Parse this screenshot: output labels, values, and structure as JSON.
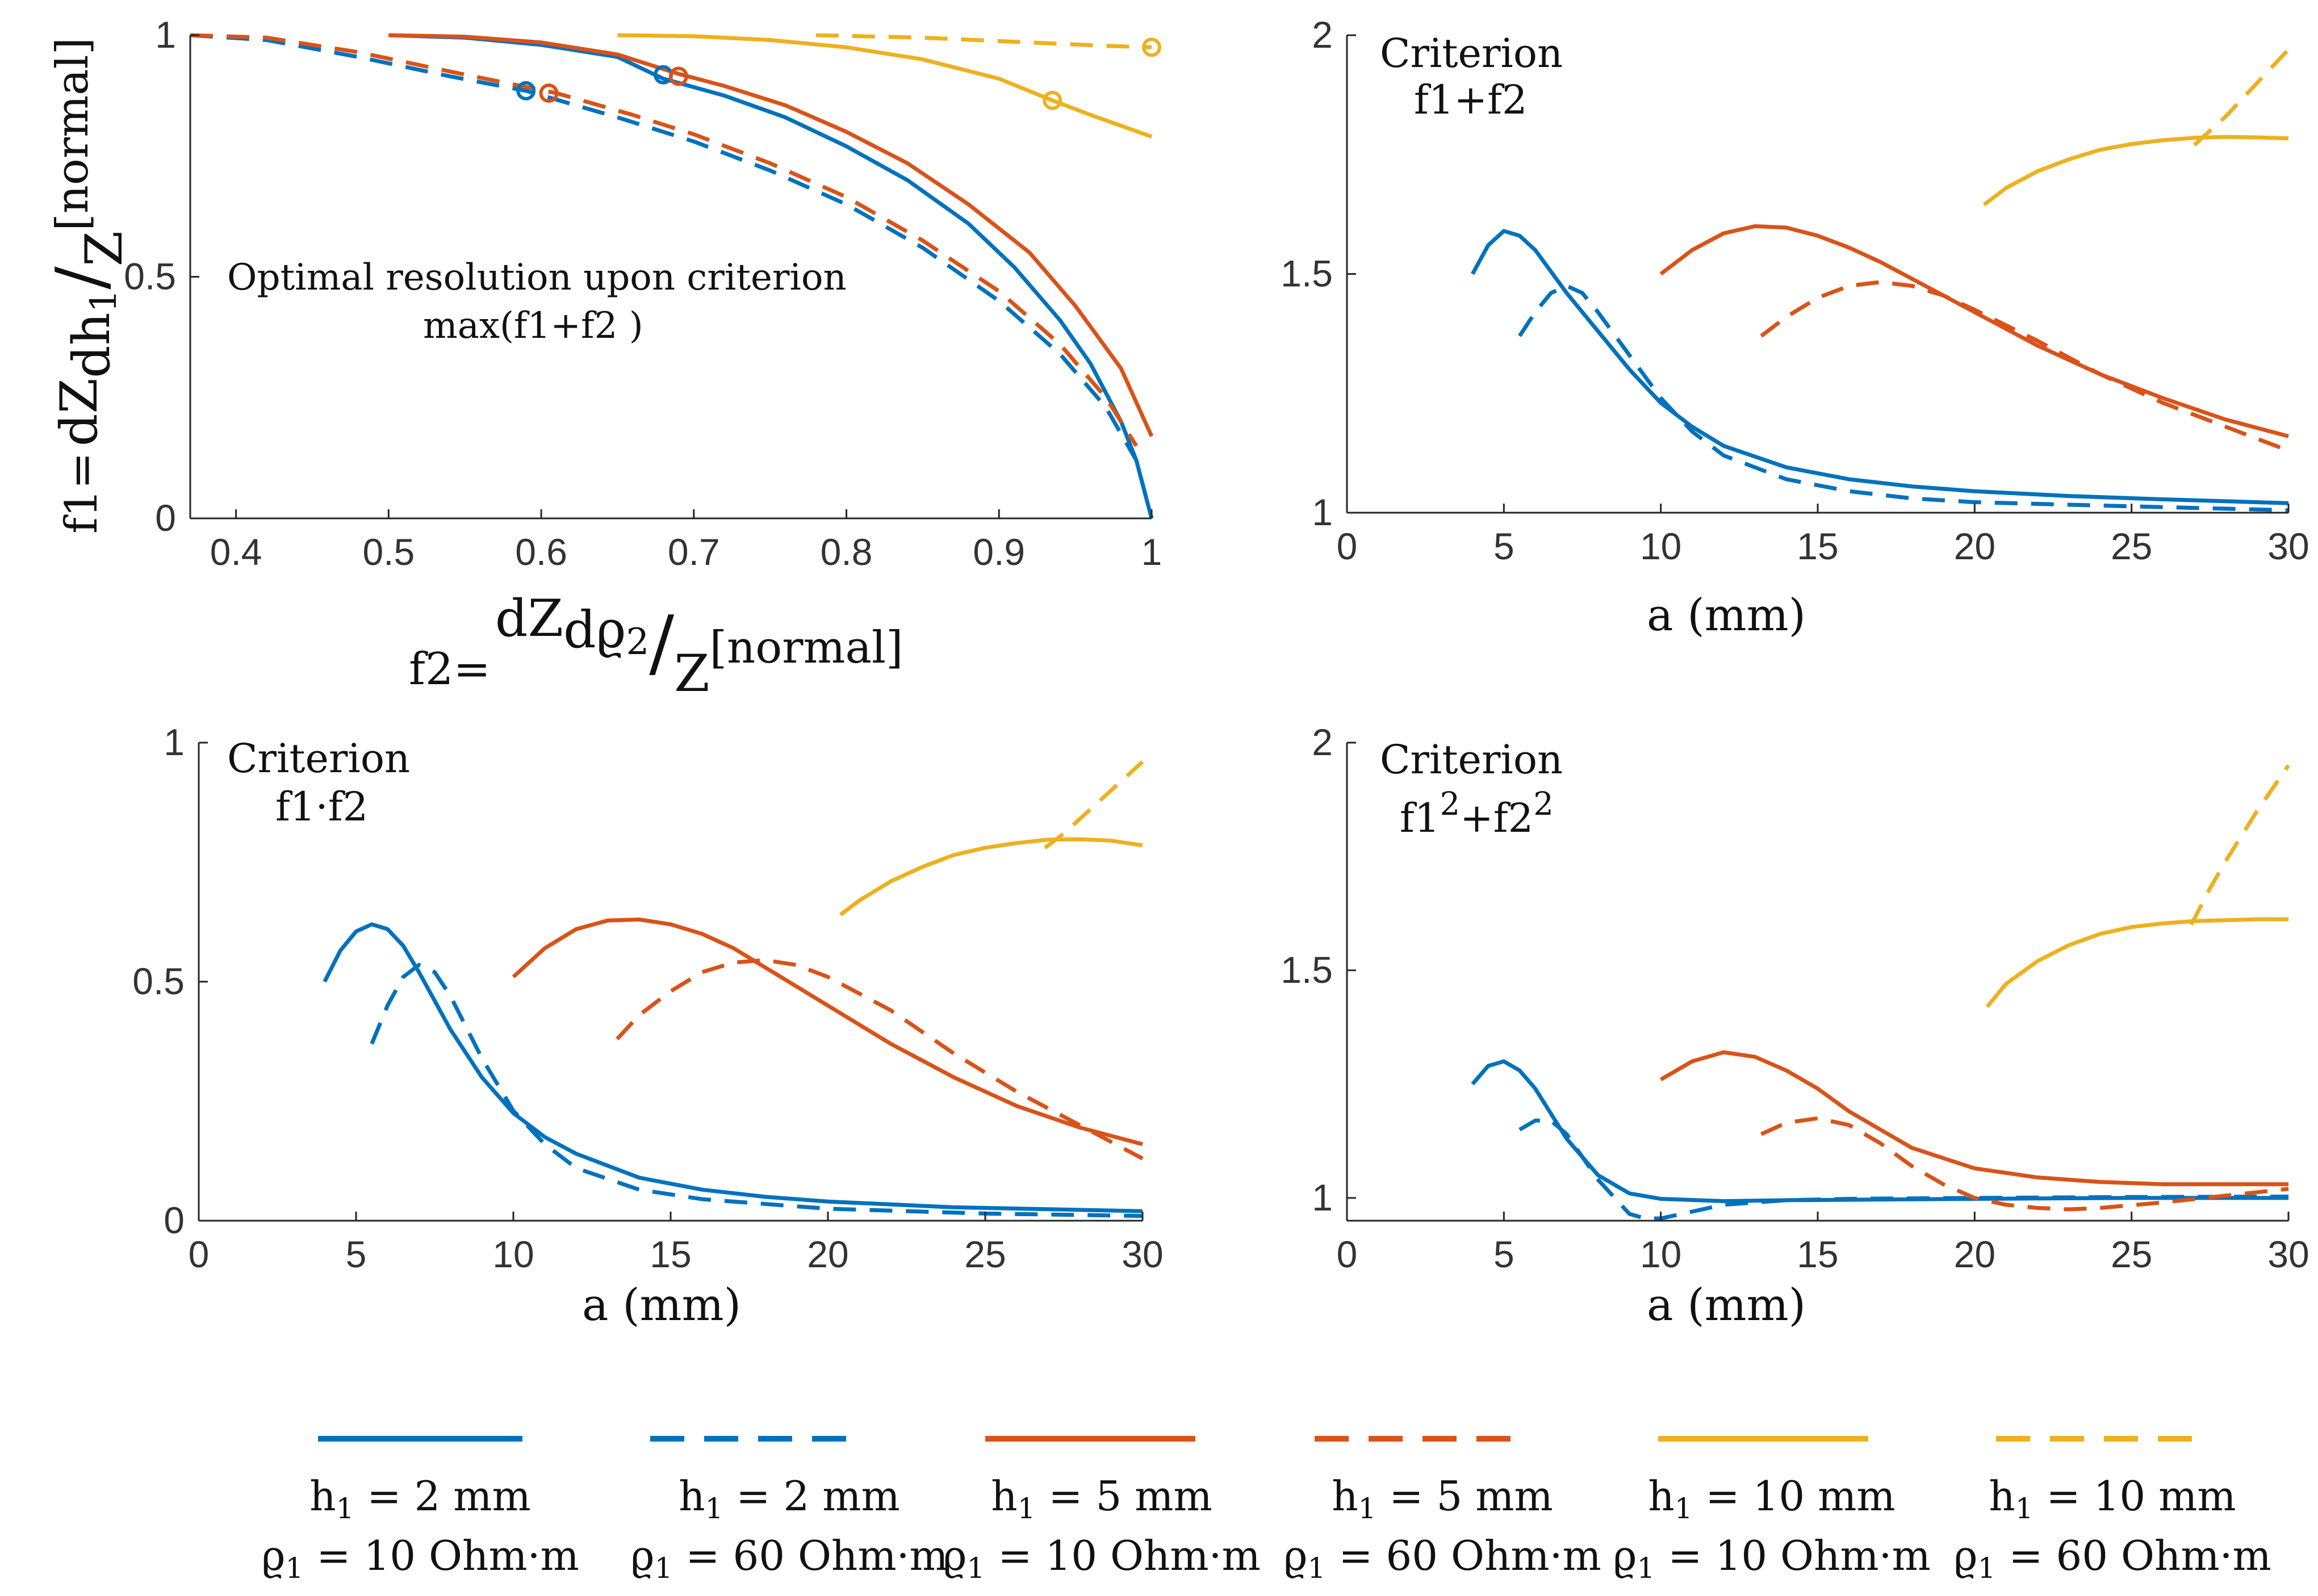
{
  "figure": "Four-panel plot comparing sensitivity trade-offs of a two-layer model",
  "series_colors": [
    "#0072BD",
    "#D95319",
    "#EDB120"
  ],
  "legend": [
    {
      "line1": "h",
      "line1_sub": "1",
      "line1_rest": " = 2 mm",
      "line2": "ϱ",
      "line2_sub": "1",
      "line2_rest": " = 10 Ohm·m",
      "color": "#0072BD",
      "dashed": false
    },
    {
      "line1": "h",
      "line1_sub": "1",
      "line1_rest": " = 2 mm",
      "line2": "ϱ",
      "line2_sub": "1",
      "line2_rest": " = 60 Ohm·m",
      "color": "#0072BD",
      "dashed": true
    },
    {
      "line1": "h",
      "line1_sub": "1",
      "line1_rest": " = 5 mm",
      "line2": "ϱ",
      "line2_sub": "1",
      "line2_rest": " = 10 Ohm·m",
      "color": "#D95319",
      "dashed": false
    },
    {
      "line1": "h",
      "line1_sub": "1",
      "line1_rest": " = 5 mm",
      "line2": "ϱ",
      "line2_sub": "1",
      "line2_rest": " = 60 Ohm·m",
      "color": "#D95319",
      "dashed": true
    },
    {
      "line1": "h",
      "line1_sub": "1",
      "line1_rest": " = 10 mm",
      "line2": "ϱ",
      "line2_sub": "1",
      "line2_rest": " = 10 Ohm·m",
      "color": "#EDB120",
      "dashed": false
    },
    {
      "line1": "h",
      "line1_sub": "1",
      "line1_rest": " = 10 mm",
      "line2": "ϱ",
      "line2_sub": "1",
      "line2_rest": " = 60 Ohm·m",
      "color": "#EDB120",
      "dashed": true
    }
  ],
  "chart_data": [
    {
      "id": "tradeoff",
      "type": "line",
      "ylabel_parts": [
        "f1=",
        "dZ",
        "dh",
        "1",
        "/",
        "Z",
        "[normal]"
      ],
      "xlabel_parts": [
        "f2=",
        "dZ",
        "dϱ",
        "2",
        "/",
        "Z",
        "[normal]"
      ],
      "annotation": [
        "Optimal resolution upon criterion",
        "max(f1+f2 )"
      ],
      "xlim": [
        0.37,
        1.0
      ],
      "ylim": [
        0,
        1
      ],
      "xticks": [
        0.4,
        0.5,
        0.6,
        0.7,
        0.8,
        0.9,
        1.0
      ],
      "xticklabels": [
        "0.4",
        "0.5",
        "0.6",
        "0.7",
        "0.8",
        "0.9",
        "1"
      ],
      "yticks": [
        0,
        0.5,
        1
      ],
      "yticklabels": [
        "0",
        "0.5",
        "1"
      ],
      "series": [
        {
          "name": "h1 = 2 mm, ϱ1 = 10 Ohm·m",
          "color": "#0072BD",
          "dashed": false,
          "x": [
            0.5,
            0.55,
            0.6,
            0.65,
            0.68,
            0.72,
            0.76,
            0.8,
            0.84,
            0.88,
            0.91,
            0.94,
            0.96,
            0.98,
            0.99,
            1.0
          ],
          "y": [
            1.0,
            0.995,
            0.98,
            0.955,
            0.91,
            0.875,
            0.83,
            0.77,
            0.7,
            0.61,
            0.52,
            0.41,
            0.32,
            0.2,
            0.12,
            0.0
          ]
        },
        {
          "name": "h1 = 2 mm, ϱ1 = 60 Ohm·m",
          "color": "#0072BD",
          "dashed": true,
          "x": [
            0.37,
            0.42,
            0.48,
            0.54,
            0.59,
            0.65,
            0.7,
            0.75,
            0.8,
            0.85,
            0.9,
            0.94,
            0.97,
            0.99,
            1.0
          ],
          "y": [
            1.0,
            0.99,
            0.955,
            0.915,
            0.885,
            0.83,
            0.78,
            0.72,
            0.65,
            0.56,
            0.45,
            0.34,
            0.23,
            0.12,
            0.0
          ]
        },
        {
          "name": "h1 = 5 mm, ϱ1 = 10 Ohm·m",
          "color": "#D95319",
          "dashed": false,
          "x": [
            0.5,
            0.55,
            0.6,
            0.65,
            0.69,
            0.72,
            0.76,
            0.8,
            0.84,
            0.88,
            0.92,
            0.95,
            0.98,
            1.0
          ],
          "y": [
            1.0,
            0.997,
            0.985,
            0.96,
            0.92,
            0.895,
            0.855,
            0.8,
            0.735,
            0.65,
            0.55,
            0.44,
            0.31,
            0.17
          ]
        },
        {
          "name": "h1 = 5 mm, ϱ1 = 60 Ohm·m",
          "color": "#D95319",
          "dashed": true,
          "x": [
            0.37,
            0.42,
            0.48,
            0.54,
            0.61,
            0.66,
            0.7,
            0.75,
            0.8,
            0.85,
            0.9,
            0.94,
            0.97,
            0.99
          ],
          "y": [
            1.0,
            0.995,
            0.965,
            0.925,
            0.88,
            0.835,
            0.795,
            0.735,
            0.665,
            0.575,
            0.47,
            0.36,
            0.25,
            0.15
          ]
        },
        {
          "name": "h1 = 10 mm, ϱ1 = 10 Ohm·m",
          "color": "#EDB120",
          "dashed": false,
          "x": [
            0.65,
            0.7,
            0.75,
            0.8,
            0.85,
            0.9,
            0.935,
            0.96,
            1.0
          ],
          "y": [
            1.0,
            0.998,
            0.99,
            0.975,
            0.95,
            0.91,
            0.865,
            0.835,
            0.79
          ]
        },
        {
          "name": "h1 = 10 mm, ϱ1 = 60 Ohm·m",
          "color": "#EDB120",
          "dashed": true,
          "x": [
            0.78,
            0.85,
            0.92,
            0.97,
            1.0
          ],
          "y": [
            1.0,
            0.995,
            0.985,
            0.978,
            0.975
          ]
        }
      ],
      "optimal_markers": [
        {
          "x": 0.59,
          "y": 0.885,
          "color": "#0072BD"
        },
        {
          "x": 0.68,
          "y": 0.918,
          "color": "#0072BD"
        },
        {
          "x": 0.605,
          "y": 0.88,
          "color": "#D95319"
        },
        {
          "x": 0.69,
          "y": 0.915,
          "color": "#D95319"
        },
        {
          "x": 0.935,
          "y": 0.865,
          "color": "#EDB120"
        },
        {
          "x": 1.0,
          "y": 0.975,
          "color": "#EDB120"
        }
      ]
    },
    {
      "id": "sum",
      "type": "line",
      "criterion": [
        "Criterion",
        "f1+f2"
      ],
      "xlabel": "a (mm)",
      "xlim": [
        0,
        30
      ],
      "ylim": [
        1,
        2
      ],
      "xticks": [
        0,
        5,
        10,
        15,
        20,
        25,
        30
      ],
      "xticklabels": [
        "0",
        "5",
        "10",
        "15",
        "20",
        "25",
        "30"
      ],
      "yticks": [
        1,
        1.5,
        2
      ],
      "yticklabels": [
        "1",
        "1.5",
        "2"
      ],
      "series": [
        {
          "name": "h1 = 2 mm, ϱ1 = 10 Ohm·m",
          "color": "#0072BD",
          "dashed": false,
          "x": [
            4,
            4.5,
            5,
            5.5,
            6,
            7,
            8,
            9,
            10,
            11,
            12,
            14,
            16,
            18,
            20,
            23,
            26,
            30
          ],
          "y": [
            1.5,
            1.56,
            1.59,
            1.58,
            1.55,
            1.46,
            1.38,
            1.3,
            1.23,
            1.18,
            1.14,
            1.095,
            1.07,
            1.055,
            1.045,
            1.035,
            1.028,
            1.02
          ]
        },
        {
          "name": "h1 = 2 mm, ϱ1 = 60 Ohm·m",
          "color": "#0072BD",
          "dashed": true,
          "x": [
            5.5,
            6,
            6.5,
            7,
            7.5,
            8,
            9,
            10,
            11,
            12,
            14,
            16,
            18,
            20,
            24,
            30
          ],
          "y": [
            1.37,
            1.42,
            1.46,
            1.475,
            1.46,
            1.42,
            1.33,
            1.24,
            1.17,
            1.12,
            1.07,
            1.045,
            1.03,
            1.022,
            1.015,
            1.005
          ]
        },
        {
          "name": "h1 = 5 mm, ϱ1 = 10 Ohm·m",
          "color": "#D95319",
          "dashed": false,
          "x": [
            10,
            11,
            12,
            13,
            14,
            15,
            16,
            17,
            18,
            20,
            22,
            24,
            26,
            28,
            30
          ],
          "y": [
            1.5,
            1.55,
            1.585,
            1.6,
            1.597,
            1.58,
            1.555,
            1.525,
            1.49,
            1.42,
            1.35,
            1.29,
            1.24,
            1.195,
            1.16
          ]
        },
        {
          "name": "h1 = 5 mm, ϱ1 = 60 Ohm·m",
          "color": "#D95319",
          "dashed": true,
          "x": [
            13.2,
            14,
            15,
            16,
            17,
            18,
            19,
            20,
            22,
            24,
            26,
            28,
            30
          ],
          "y": [
            1.37,
            1.41,
            1.45,
            1.475,
            1.483,
            1.475,
            1.455,
            1.425,
            1.36,
            1.29,
            1.23,
            1.18,
            1.13
          ]
        },
        {
          "name": "h1 = 10 mm, ϱ1 = 10 Ohm·m",
          "color": "#EDB120",
          "dashed": false,
          "x": [
            20.3,
            21,
            22,
            23,
            24,
            25,
            26,
            27,
            28,
            29,
            30
          ],
          "y": [
            1.645,
            1.68,
            1.715,
            1.74,
            1.76,
            1.772,
            1.78,
            1.785,
            1.787,
            1.786,
            1.784
          ]
        },
        {
          "name": "h1 = 10 mm, ϱ1 = 60 Ohm·m",
          "color": "#EDB120",
          "dashed": true,
          "x": [
            27,
            28,
            29,
            30
          ],
          "y": [
            1.77,
            1.83,
            1.9,
            1.97
          ]
        }
      ]
    },
    {
      "id": "product",
      "type": "line",
      "criterion": [
        "Criterion",
        "f1·f2"
      ],
      "xlabel": "a (mm)",
      "xlim": [
        0,
        30
      ],
      "ylim": [
        0,
        1
      ],
      "xticks": [
        0,
        5,
        10,
        15,
        20,
        25,
        30
      ],
      "xticklabels": [
        "0",
        "5",
        "10",
        "15",
        "20",
        "25",
        "30"
      ],
      "yticks": [
        0,
        0.5,
        1
      ],
      "yticklabels": [
        "0",
        "0.5",
        "1"
      ],
      "series": [
        {
          "name": "h1 = 2 mm, ϱ1 = 10 Ohm·m",
          "color": "#0072BD",
          "dashed": false,
          "x": [
            4,
            4.5,
            5,
            5.5,
            6,
            6.5,
            7,
            8,
            9,
            10,
            11,
            12,
            14,
            16,
            18,
            20,
            24,
            30
          ],
          "y": [
            0.5,
            0.565,
            0.605,
            0.62,
            0.61,
            0.575,
            0.52,
            0.4,
            0.3,
            0.225,
            0.175,
            0.14,
            0.09,
            0.065,
            0.05,
            0.04,
            0.028,
            0.02
          ]
        },
        {
          "name": "h1 = 2 mm, ϱ1 = 60 Ohm·m",
          "color": "#0072BD",
          "dashed": true,
          "x": [
            5.5,
            6,
            6.5,
            7,
            7.5,
            8,
            9,
            10,
            11,
            12,
            14,
            16,
            20,
            25,
            30
          ],
          "y": [
            0.37,
            0.45,
            0.51,
            0.535,
            0.52,
            0.47,
            0.34,
            0.23,
            0.16,
            0.11,
            0.065,
            0.045,
            0.025,
            0.015,
            0.01
          ]
        },
        {
          "name": "h1 = 5 mm, ϱ1 = 10 Ohm·m",
          "color": "#D95319",
          "dashed": false,
          "x": [
            10,
            11,
            12,
            13,
            14,
            15,
            16,
            17,
            18,
            20,
            22,
            24,
            26,
            28,
            30
          ],
          "y": [
            0.51,
            0.57,
            0.61,
            0.628,
            0.63,
            0.62,
            0.6,
            0.57,
            0.53,
            0.45,
            0.37,
            0.3,
            0.24,
            0.195,
            0.16
          ]
        },
        {
          "name": "h1 = 5 mm, ϱ1 = 60 Ohm·m",
          "color": "#D95319",
          "dashed": true,
          "x": [
            13.3,
            14,
            15,
            16,
            17,
            18,
            19,
            20,
            22,
            24,
            26,
            28,
            30
          ],
          "y": [
            0.38,
            0.43,
            0.48,
            0.52,
            0.54,
            0.545,
            0.535,
            0.51,
            0.44,
            0.35,
            0.27,
            0.2,
            0.13
          ]
        },
        {
          "name": "h1 = 10 mm, ϱ1 = 10 Ohm·m",
          "color": "#EDB120",
          "dashed": false,
          "x": [
            20.4,
            21,
            22,
            23,
            24,
            25,
            26,
            27,
            28,
            29,
            30
          ],
          "y": [
            0.64,
            0.67,
            0.71,
            0.74,
            0.765,
            0.78,
            0.79,
            0.797,
            0.798,
            0.795,
            0.785
          ]
        },
        {
          "name": "h1 = 10 mm, ϱ1 = 60 Ohm·m",
          "color": "#EDB120",
          "dashed": true,
          "x": [
            26.9,
            27.5,
            28,
            29,
            30
          ],
          "y": [
            0.78,
            0.81,
            0.84,
            0.9,
            0.96
          ]
        }
      ]
    },
    {
      "id": "squares",
      "type": "line",
      "criterion": [
        "Criterion",
        "f1",
        "2",
        "+f2",
        "2"
      ],
      "xlabel": "a (mm)",
      "xlim": [
        0,
        30
      ],
      "ylim": [
        0.95,
        2
      ],
      "xticks": [
        0,
        5,
        10,
        15,
        20,
        25,
        30
      ],
      "xticklabels": [
        "0",
        "5",
        "10",
        "15",
        "20",
        "25",
        "30"
      ],
      "yticks": [
        1,
        1.5,
        2
      ],
      "yticklabels": [
        "1",
        "1.5",
        "2"
      ],
      "series": [
        {
          "name": "h1 = 2 mm, ϱ1 = 10 Ohm·m",
          "color": "#0072BD",
          "dashed": false,
          "x": [
            4,
            4.5,
            5,
            5.5,
            6,
            7,
            8,
            9,
            10,
            12,
            14,
            20,
            25,
            30
          ],
          "y": [
            1.25,
            1.29,
            1.3,
            1.28,
            1.24,
            1.13,
            1.05,
            1.01,
            0.998,
            0.993,
            0.995,
            0.998,
            1.0,
            1.0
          ]
        },
        {
          "name": "h1 = 2 mm, ϱ1 = 60 Ohm·m",
          "color": "#0072BD",
          "dashed": true,
          "x": [
            5.5,
            6,
            6.5,
            7,
            8,
            9,
            9.5,
            10,
            11,
            12,
            14,
            16,
            20,
            25,
            30
          ],
          "y": [
            1.15,
            1.17,
            1.17,
            1.14,
            1.04,
            0.965,
            0.955,
            0.955,
            0.97,
            0.985,
            0.995,
            0.998,
            1.0,
            1.002,
            1.003
          ]
        },
        {
          "name": "h1 = 5 mm, ϱ1 = 10 Ohm·m",
          "color": "#D95319",
          "dashed": false,
          "x": [
            10,
            11,
            12,
            13,
            14,
            15,
            16,
            17,
            18,
            20,
            22,
            24,
            26,
            28,
            30
          ],
          "y": [
            1.26,
            1.3,
            1.32,
            1.31,
            1.28,
            1.24,
            1.19,
            1.15,
            1.11,
            1.065,
            1.045,
            1.035,
            1.03,
            1.03,
            1.03
          ]
        },
        {
          "name": "h1 = 5 mm, ϱ1 = 60 Ohm·m",
          "color": "#D95319",
          "dashed": true,
          "x": [
            13.2,
            14,
            15,
            16,
            17,
            18,
            19,
            20,
            21,
            22,
            23,
            24,
            26,
            28,
            30
          ],
          "y": [
            1.14,
            1.165,
            1.175,
            1.16,
            1.12,
            1.07,
            1.03,
            1.0,
            0.985,
            0.978,
            0.975,
            0.978,
            0.99,
            1.005,
            1.02
          ]
        },
        {
          "name": "h1 = 10 mm, ϱ1 = 10 Ohm·m",
          "color": "#EDB120",
          "dashed": false,
          "x": [
            20.4,
            21,
            22,
            23,
            24,
            25,
            26,
            27,
            28,
            29,
            30
          ],
          "y": [
            1.42,
            1.47,
            1.52,
            1.555,
            1.58,
            1.595,
            1.603,
            1.608,
            1.61,
            1.612,
            1.612
          ]
        },
        {
          "name": "h1 = 10 mm, ϱ1 = 60 Ohm·m",
          "color": "#EDB120",
          "dashed": true,
          "x": [
            26.9,
            27.5,
            28,
            29,
            30
          ],
          "y": [
            1.6,
            1.68,
            1.74,
            1.85,
            1.95
          ]
        }
      ]
    }
  ]
}
